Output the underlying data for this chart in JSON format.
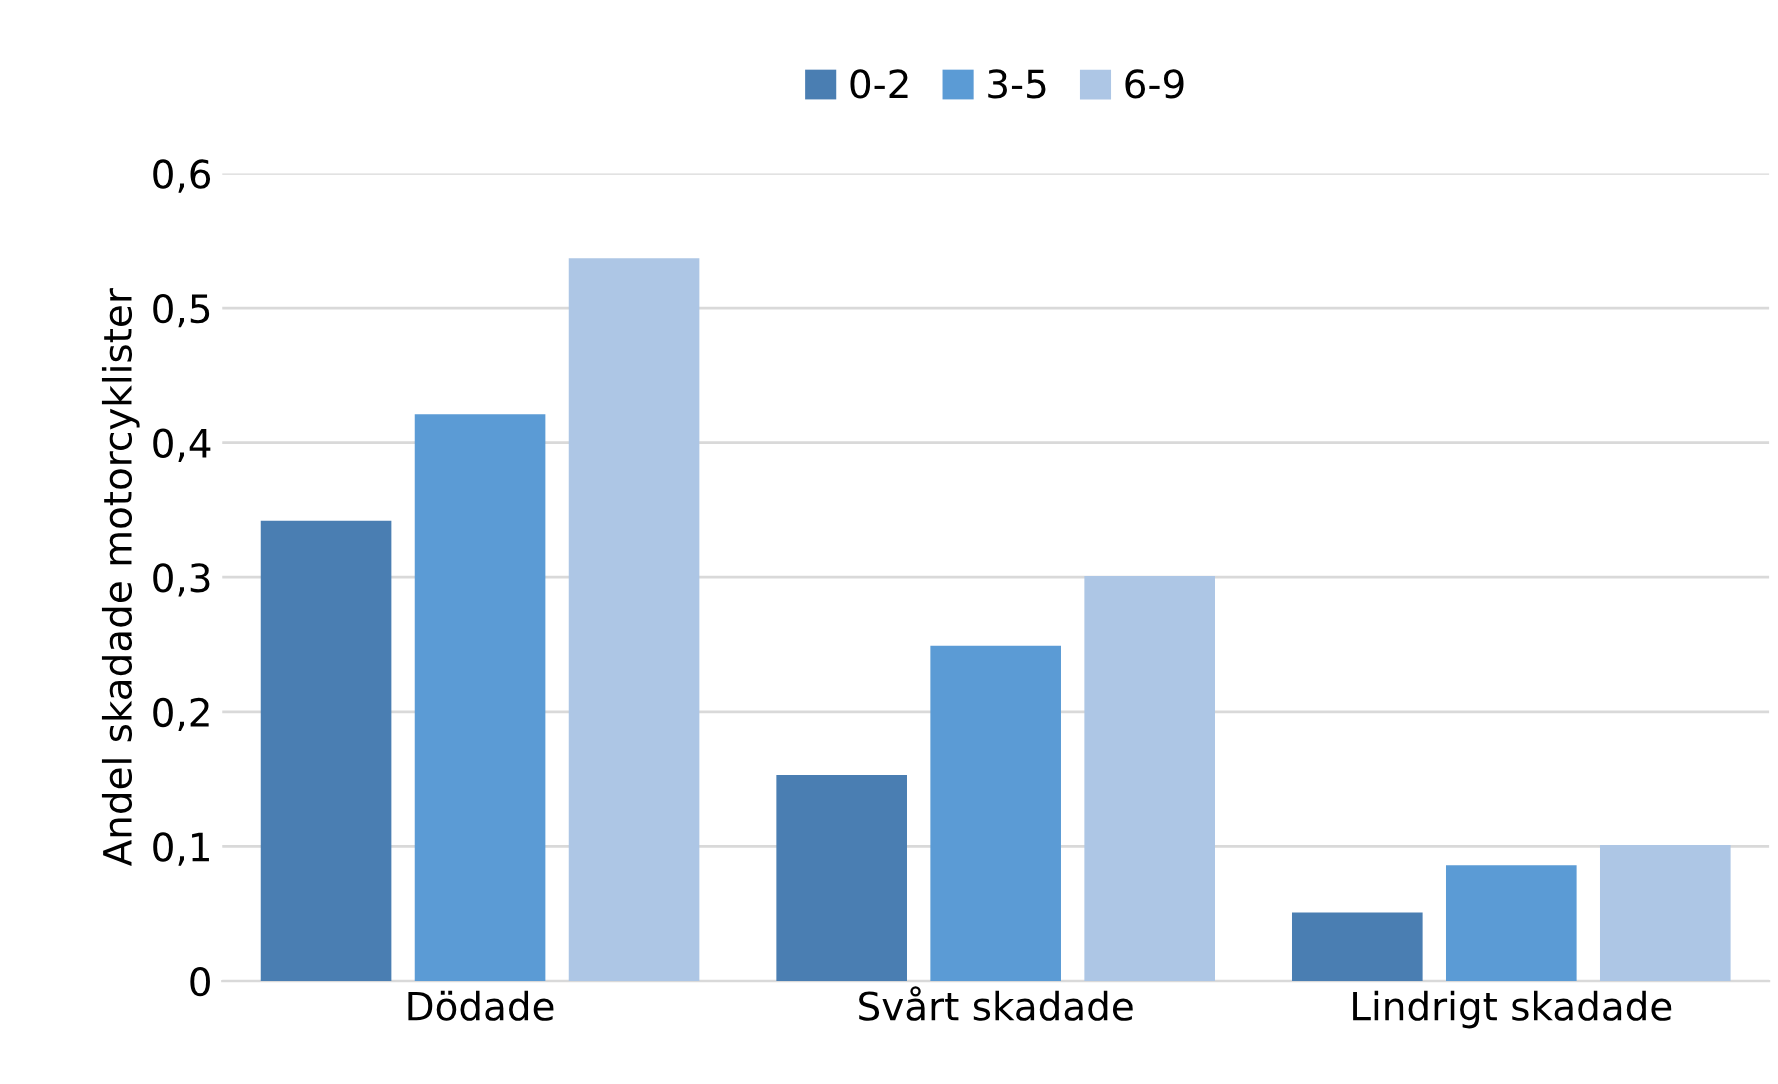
{
  "chart_data": {
    "type": "bar",
    "ylabel": "Andel skadade motorcyklister",
    "categories": [
      "Dödade",
      "Svårt skadade",
      "Lindrigt skadade"
    ],
    "series": [
      {
        "name": "0-2",
        "color": "#4a7eb2",
        "values": [
          0.342,
          0.153,
          0.051
        ]
      },
      {
        "name": "3-5",
        "color": "#5b9bd5",
        "values": [
          0.421,
          0.249,
          0.086
        ]
      },
      {
        "name": "6-9",
        "color": "#adc6e5",
        "values": [
          0.537,
          0.301,
          0.101
        ]
      }
    ],
    "ylim": [
      0,
      0.6
    ],
    "yticks": [
      {
        "value": 0,
        "label": "0"
      },
      {
        "value": 0.1,
        "label": "0,1"
      },
      {
        "value": 0.2,
        "label": "0,2"
      },
      {
        "value": 0.3,
        "label": "0,3"
      },
      {
        "value": 0.4,
        "label": "0,4"
      },
      {
        "value": 0.5,
        "label": "0,5"
      },
      {
        "value": 0.6,
        "label": "0,6"
      }
    ],
    "grid": "y",
    "legend": "top"
  }
}
